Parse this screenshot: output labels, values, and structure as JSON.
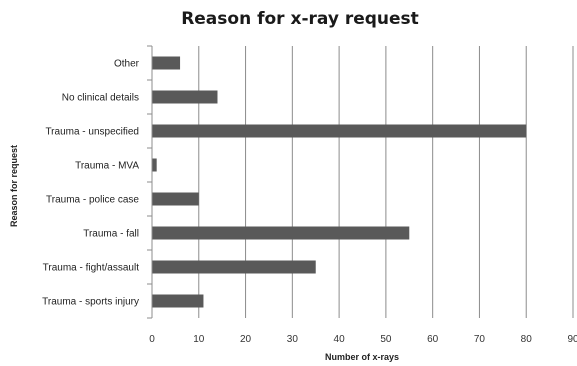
{
  "chart_data": {
    "type": "bar",
    "orientation": "horizontal",
    "title": "Reason for x-ray request",
    "xlabel": "Number of x-rays",
    "ylabel": "Reason for request",
    "categories": [
      "Other",
      "No clinical details",
      "Trauma - unspecified",
      "Trauma - MVA",
      "Trauma - police case",
      "Trauma - fall",
      "Trauma - fight/assault",
      "Trauma - sports injury"
    ],
    "values": [
      6,
      14,
      80,
      1,
      10,
      55,
      35,
      11
    ],
    "xlim": [
      0,
      90
    ],
    "xticks": [
      0,
      10,
      20,
      30,
      40,
      50,
      60,
      70,
      80,
      90
    ],
    "grid": true,
    "legend": "none",
    "bar_color": "#595959"
  }
}
